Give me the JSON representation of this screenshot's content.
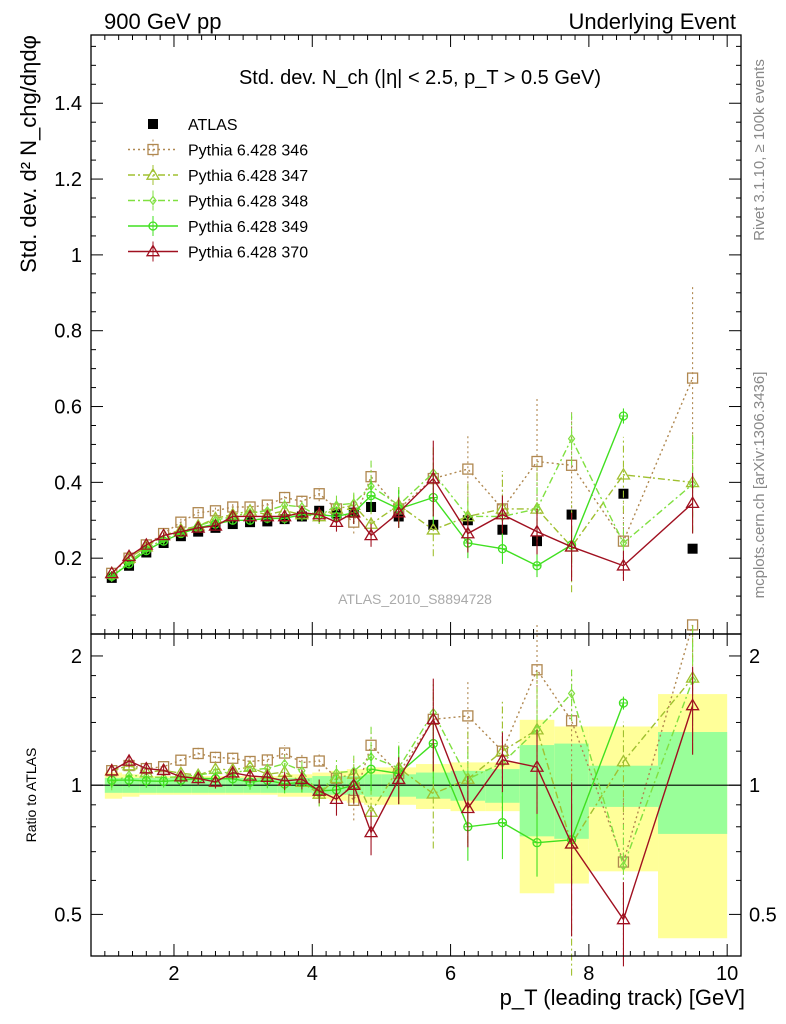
{
  "header": {
    "left": "900 GeV pp",
    "right": "Underlying Event"
  },
  "side_labels": {
    "rivet": "Rivet 3.1.10, ≥ 100k events",
    "mcplots": "mcplots.cern.ch [arXiv:1306.3436]"
  },
  "chart_data": [
    {
      "type": "scatter",
      "title": "Std. dev. N_ch (|η| < 2.5, p_T > 0.5 GeV)",
      "ylabel": "Std. dev. d² N_chg/dηdφ",
      "xlabel": "p_T (leading track) [GeV]",
      "xlim": [
        0.8,
        10.2
      ],
      "ylim": [
        0,
        1.58
      ],
      "yticks": [
        "0.2",
        "0.4",
        "0.6",
        "0.8",
        "1",
        "1.2",
        "1.4"
      ],
      "watermark": "ATLAS_2010_S8894728",
      "legend_position": "top-left",
      "x": [
        1.1,
        1.35,
        1.6,
        1.85,
        2.1,
        2.35,
        2.6,
        2.85,
        3.1,
        3.35,
        3.6,
        3.85,
        4.1,
        4.35,
        4.6,
        4.85,
        5.25,
        5.75,
        6.25,
        6.75,
        7.25,
        7.75,
        8.5,
        9.5
      ],
      "series": [
        {
          "name": "ATLAS",
          "color": "#000000",
          "marker": "square-filled",
          "values": [
            0.148,
            0.18,
            0.215,
            0.24,
            0.258,
            0.27,
            0.28,
            0.29,
            0.295,
            0.297,
            0.303,
            0.31,
            0.325,
            0.318,
            0.32,
            0.335,
            0.31,
            0.288,
            0.3,
            0.275,
            0.245,
            0.315,
            0.37,
            0.225
          ]
        },
        {
          "name": "Pythia 6.428 346",
          "color": "#b08850",
          "marker": "square-open",
          "dash": "2,3",
          "values": [
            0.16,
            0.2,
            0.235,
            0.265,
            0.295,
            0.32,
            0.325,
            0.335,
            0.335,
            0.34,
            0.36,
            0.35,
            0.37,
            0.33,
            0.295,
            0.415,
            0.33,
            0.41,
            0.435,
            0.33,
            0.455,
            0.445,
            0.245,
            0.675
          ],
          "errors": [
            0.006,
            0.007,
            0.008,
            0.008,
            0.009,
            0.01,
            0.01,
            0.011,
            0.012,
            0.013,
            0.015,
            0.017,
            0.02,
            0.025,
            0.03,
            0.04,
            0.05,
            0.07,
            0.09,
            0.1,
            0.17,
            0.14,
            0.1,
            0.24
          ]
        },
        {
          "name": "Pythia 6.428 347",
          "color": "#a0c030",
          "marker": "triangle-open",
          "dash": "7,3,2,3",
          "values": [
            0.16,
            0.2,
            0.23,
            0.26,
            0.275,
            0.285,
            0.305,
            0.315,
            0.325,
            0.315,
            0.325,
            0.315,
            0.31,
            0.33,
            0.34,
            0.29,
            0.34,
            0.275,
            0.31,
            0.33,
            0.33,
            0.23,
            0.42,
            0.4
          ],
          "errors": [
            0.006,
            0.007,
            0.008,
            0.008,
            0.009,
            0.01,
            0.01,
            0.011,
            0.012,
            0.013,
            0.015,
            0.017,
            0.02,
            0.025,
            0.03,
            0.04,
            0.05,
            0.07,
            0.09,
            0.1,
            0.12,
            0.12,
            0.1,
            0.13
          ]
        },
        {
          "name": "Pythia 6.428 348",
          "color": "#80e040",
          "marker": "diamond-open",
          "dash": "7,3,2,3",
          "values": [
            0.15,
            0.19,
            0.225,
            0.25,
            0.27,
            0.285,
            0.3,
            0.31,
            0.32,
            0.325,
            0.34,
            0.335,
            0.31,
            0.34,
            0.345,
            0.39,
            0.34,
            0.425,
            0.31,
            0.31,
            0.33,
            0.515,
            0.24,
            0.395
          ],
          "errors": [
            0.006,
            0.007,
            0.008,
            0.008,
            0.009,
            0.01,
            0.01,
            0.011,
            0.012,
            0.013,
            0.015,
            0.017,
            0.02,
            0.025,
            0.03,
            0.07,
            0.05,
            0.07,
            0.06,
            0.06,
            0.08,
            0.07,
            0.06,
            0.13
          ]
        },
        {
          "name": "Pythia 6.428 349",
          "color": "#40e020",
          "marker": "circle-cross",
          "dash": "",
          "values": [
            0.152,
            0.185,
            0.22,
            0.245,
            0.265,
            0.28,
            0.29,
            0.3,
            0.3,
            0.305,
            0.305,
            0.315,
            0.315,
            0.31,
            0.32,
            0.365,
            0.33,
            0.36,
            0.24,
            0.225,
            0.18,
            0.235,
            0.575,
            null
          ],
          "errors": [
            0.006,
            0.007,
            0.008,
            0.008,
            0.009,
            0.01,
            0.01,
            0.011,
            0.012,
            0.013,
            0.015,
            0.017,
            0.02,
            0.025,
            0.03,
            0.04,
            0.05,
            0.07,
            0.04,
            0.04,
            0.03,
            0.05,
            0.02,
            null
          ]
        },
        {
          "name": "Pythia 6.428 370",
          "color": "#a01020",
          "marker": "triangle-open",
          "dash": "",
          "values": [
            0.16,
            0.205,
            0.235,
            0.26,
            0.27,
            0.28,
            0.285,
            0.31,
            0.31,
            0.31,
            0.31,
            0.32,
            0.315,
            0.295,
            0.32,
            0.26,
            0.32,
            0.41,
            0.265,
            0.315,
            0.27,
            0.23,
            0.18,
            0.345
          ],
          "errors": [
            0.006,
            0.007,
            0.008,
            0.008,
            0.009,
            0.01,
            0.01,
            0.011,
            0.012,
            0.013,
            0.015,
            0.017,
            0.02,
            0.025,
            0.03,
            0.03,
            0.04,
            0.1,
            0.05,
            0.05,
            0.06,
            0.09,
            0.04,
            0.08
          ]
        }
      ]
    },
    {
      "type": "scatter",
      "ylabel": "Ratio to ATLAS",
      "xlabel": "p_T (leading track) [GeV]",
      "xlim": [
        0.8,
        10.2
      ],
      "ylim": [
        0.4,
        2.25
      ],
      "scale": "log",
      "xticks": [
        "2",
        "4",
        "6",
        "8",
        "10"
      ],
      "yticks_left": [
        "0.5",
        "1",
        "2"
      ],
      "yticks_right": [
        "0.5",
        "1",
        "2"
      ],
      "band_bins": [
        {
          "lo": 1.0,
          "hi": 1.25,
          "inner": [
            0.96,
            1.04
          ],
          "outer": [
            0.93,
            1.07
          ]
        },
        {
          "lo": 1.25,
          "hi": 1.5,
          "inner": [
            0.96,
            1.04
          ],
          "outer": [
            0.94,
            1.06
          ]
        },
        {
          "lo": 1.5,
          "hi": 1.75,
          "inner": [
            0.96,
            1.04
          ],
          "outer": [
            0.95,
            1.05
          ]
        },
        {
          "lo": 1.75,
          "hi": 2.0,
          "inner": [
            0.96,
            1.04
          ],
          "outer": [
            0.95,
            1.05
          ]
        },
        {
          "lo": 2.0,
          "hi": 2.25,
          "inner": [
            0.96,
            1.04
          ],
          "outer": [
            0.95,
            1.05
          ]
        },
        {
          "lo": 2.25,
          "hi": 2.5,
          "inner": [
            0.96,
            1.04
          ],
          "outer": [
            0.95,
            1.05
          ]
        },
        {
          "lo": 2.5,
          "hi": 2.75,
          "inner": [
            0.96,
            1.04
          ],
          "outer": [
            0.95,
            1.05
          ]
        },
        {
          "lo": 2.75,
          "hi": 3.0,
          "inner": [
            0.96,
            1.04
          ],
          "outer": [
            0.95,
            1.05
          ]
        },
        {
          "lo": 3.0,
          "hi": 3.25,
          "inner": [
            0.96,
            1.04
          ],
          "outer": [
            0.95,
            1.05
          ]
        },
        {
          "lo": 3.25,
          "hi": 3.5,
          "inner": [
            0.96,
            1.04
          ],
          "outer": [
            0.95,
            1.05
          ]
        },
        {
          "lo": 3.5,
          "hi": 3.75,
          "inner": [
            0.96,
            1.04
          ],
          "outer": [
            0.94,
            1.06
          ]
        },
        {
          "lo": 3.75,
          "hi": 4.0,
          "inner": [
            0.96,
            1.04
          ],
          "outer": [
            0.94,
            1.06
          ]
        },
        {
          "lo": 4.0,
          "hi": 4.25,
          "inner": [
            0.95,
            1.05
          ],
          "outer": [
            0.93,
            1.07
          ]
        },
        {
          "lo": 4.25,
          "hi": 4.5,
          "inner": [
            0.95,
            1.05
          ],
          "outer": [
            0.92,
            1.08
          ]
        },
        {
          "lo": 4.5,
          "hi": 4.75,
          "inner": [
            0.95,
            1.05
          ],
          "outer": [
            0.91,
            1.09
          ]
        },
        {
          "lo": 4.75,
          "hi": 5.0,
          "inner": [
            0.94,
            1.06
          ],
          "outer": [
            0.9,
            1.1
          ]
        },
        {
          "lo": 5.0,
          "hi": 5.5,
          "inner": [
            0.94,
            1.06
          ],
          "outer": [
            0.9,
            1.1
          ]
        },
        {
          "lo": 5.5,
          "hi": 6.0,
          "inner": [
            0.93,
            1.07
          ],
          "outer": [
            0.88,
            1.12
          ]
        },
        {
          "lo": 6.0,
          "hi": 6.5,
          "inner": [
            0.92,
            1.08
          ],
          "outer": [
            0.87,
            1.13
          ]
        },
        {
          "lo": 6.5,
          "hi": 7.0,
          "inner": [
            0.91,
            1.09
          ],
          "outer": [
            0.87,
            1.13
          ]
        },
        {
          "lo": 7.0,
          "hi": 7.5,
          "inner": [
            0.76,
            1.24
          ],
          "outer": [
            0.56,
            1.42
          ]
        },
        {
          "lo": 7.5,
          "hi": 8.0,
          "inner": [
            0.75,
            1.25
          ],
          "outer": [
            0.59,
            1.37
          ]
        },
        {
          "lo": 8.0,
          "hi": 9.0,
          "inner": [
            0.89,
            1.11
          ],
          "outer": [
            0.63,
            1.37
          ]
        },
        {
          "lo": 9.0,
          "hi": 10.0,
          "inner": [
            0.77,
            1.33
          ],
          "outer": [
            0.44,
            1.63
          ]
        }
      ]
    }
  ]
}
